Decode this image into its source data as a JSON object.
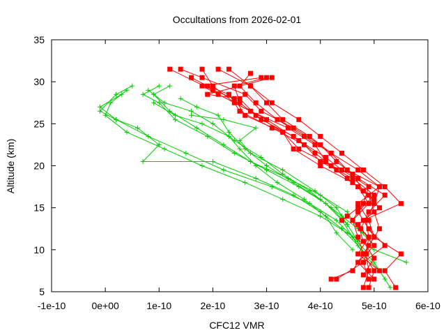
{
  "chart_data": {
    "type": "line",
    "title": "Occultations from 2026-02-01",
    "xlabel": "CFC12 VMR",
    "ylabel": "Altitude (km)",
    "xlim": [
      -1e-10,
      6e-10
    ],
    "ylim": [
      5,
      35
    ],
    "x_ticks": [
      -1e-10,
      0,
      1e-10,
      2e-10,
      3e-10,
      4e-10,
      5e-10,
      6e-10
    ],
    "x_tick_labels": [
      "-1e-10",
      "0e+00",
      "1e-10",
      "2e-10",
      "3e-10",
      "4e-10",
      "5e-10",
      "6e-10"
    ],
    "y_ticks": [
      5,
      10,
      15,
      20,
      25,
      30,
      35
    ],
    "y_tick_labels": [
      "5",
      "10",
      "15",
      "20",
      "25",
      "30",
      "35"
    ],
    "grid": false,
    "legend": "none",
    "colors": {
      "red": "#ff0000",
      "green": "#00cc00"
    },
    "series": [
      {
        "name": "red-1",
        "color": "#ff0000",
        "marker": "square",
        "points": [
          [
            4.8e-10,
            5.5
          ],
          [
            4.9e-10,
            7.5
          ],
          [
            4.85e-10,
            9.5
          ],
          [
            4.9e-10,
            11.5
          ],
          [
            4.85e-10,
            13.5
          ],
          [
            5e-10,
            15.5
          ],
          [
            5.1e-10,
            17.5
          ],
          [
            4.5e-10,
            19.5
          ],
          [
            4.2e-10,
            21.5
          ],
          [
            3.8e-10,
            23.5
          ],
          [
            3.3e-10,
            25.5
          ],
          [
            3e-10,
            27.5
          ],
          [
            2.7e-10,
            29.5
          ],
          [
            2.3e-10,
            31.5
          ]
        ]
      },
      {
        "name": "red-2",
        "color": "#ff0000",
        "marker": "square",
        "points": [
          [
            5e-10,
            6.5
          ],
          [
            4.7e-10,
            8.5
          ],
          [
            5e-10,
            10.5
          ],
          [
            4.75e-10,
            12.5
          ],
          [
            4.9e-10,
            14.5
          ],
          [
            5.2e-10,
            16.5
          ],
          [
            4.7e-10,
            18.5
          ],
          [
            4.3e-10,
            20.5
          ],
          [
            4e-10,
            22.5
          ],
          [
            3.5e-10,
            24.5
          ],
          [
            2.9e-10,
            26.5
          ],
          [
            2.6e-10,
            28.5
          ],
          [
            1.8e-10,
            30.5
          ],
          [
            1.4e-10,
            31.5
          ]
        ]
      },
      {
        "name": "red-3",
        "color": "#ff0000",
        "marker": "square",
        "points": [
          [
            4.2e-10,
            6.5
          ],
          [
            4.6e-10,
            7.5
          ],
          [
            4.8e-10,
            9.5
          ],
          [
            4.7e-10,
            11.5
          ],
          [
            4.6e-10,
            13.5
          ],
          [
            4.8e-10,
            15.5
          ],
          [
            4.9e-10,
            17.5
          ],
          [
            4.4e-10,
            19.5
          ],
          [
            4.1e-10,
            21.0
          ],
          [
            3.6e-10,
            23.0
          ],
          [
            3e-10,
            25.5
          ],
          [
            2.4e-10,
            27.5
          ],
          [
            2e-10,
            29.5
          ],
          [
            1.8e-10,
            31.5
          ]
        ]
      },
      {
        "name": "red-4",
        "color": "#ff0000",
        "marker": "square",
        "points": [
          [
            5.4e-10,
            5.5
          ],
          [
            5.2e-10,
            7.5
          ],
          [
            5.5e-10,
            9.5
          ],
          [
            5e-10,
            11.5
          ],
          [
            4.8e-10,
            13.5
          ],
          [
            5.5e-10,
            15.5
          ],
          [
            5.2e-10,
            17.5
          ],
          [
            4.8e-10,
            19.5
          ],
          [
            4.4e-10,
            21.5
          ],
          [
            4e-10,
            23.5
          ],
          [
            3.6e-10,
            25.5
          ],
          [
            3.1e-10,
            27.5
          ],
          [
            2.7e-10,
            29.5
          ],
          [
            2.1e-10,
            31.5
          ]
        ]
      },
      {
        "name": "red-5",
        "color": "#ff0000",
        "marker": "square",
        "points": [
          [
            4.3e-10,
            6.5
          ],
          [
            4.8e-10,
            8.5
          ],
          [
            5.2e-10,
            10.5
          ],
          [
            4.9e-10,
            12.5
          ],
          [
            4.7e-10,
            14.5
          ],
          [
            5e-10,
            16.5
          ],
          [
            4.6e-10,
            18.5
          ],
          [
            4e-10,
            20.5
          ],
          [
            3.7e-10,
            22.5
          ],
          [
            3.1e-10,
            24.5
          ],
          [
            2.5e-10,
            26.5
          ],
          [
            2.3e-10,
            28.5
          ],
          [
            1.9e-10,
            29.5
          ],
          [
            1.6e-10,
            30.5
          ]
        ]
      },
      {
        "name": "red-6",
        "color": "#ff0000",
        "marker": "square",
        "points": [
          [
            4.9e-10,
            5.5
          ],
          [
            5e-10,
            7.5
          ],
          [
            4.8e-10,
            9.5
          ],
          [
            5e-10,
            11.5
          ],
          [
            4.9e-10,
            13.5
          ],
          [
            4.7e-10,
            15.5
          ],
          [
            5.1e-10,
            17.5
          ],
          [
            4.7e-10,
            19.5
          ],
          [
            4.2e-10,
            21.5
          ],
          [
            3.7e-10,
            23.5
          ],
          [
            3.2e-10,
            25.5
          ],
          [
            2.8e-10,
            27.5
          ],
          [
            2.5e-10,
            29.5
          ],
          [
            2.7e-10,
            31.0
          ]
        ]
      },
      {
        "name": "red-7",
        "color": "#ff0000",
        "marker": "square",
        "points": [
          [
            4.9e-10,
            6.5
          ],
          [
            4.8e-10,
            8.5
          ],
          [
            4.9e-10,
            10.5
          ],
          [
            5.1e-10,
            12.5
          ],
          [
            5e-10,
            14.5
          ],
          [
            4.9e-10,
            16.5
          ],
          [
            4.5e-10,
            18.5
          ],
          [
            4.1e-10,
            20.5
          ],
          [
            3.9e-10,
            22.5
          ],
          [
            3.4e-10,
            24.5
          ],
          [
            2.7e-10,
            26.5
          ],
          [
            2.1e-10,
            28.5
          ],
          [
            1.8e-10,
            29.5
          ],
          [
            2.9e-10,
            30.5
          ]
        ]
      },
      {
        "name": "red-8",
        "color": "#ff0000",
        "marker": "square",
        "points": [
          [
            5.1e-10,
            7.5
          ],
          [
            4.7e-10,
            9.5
          ],
          [
            4.9e-10,
            11.5
          ],
          [
            4.6e-10,
            13.5
          ],
          [
            4.9e-10,
            15.5
          ],
          [
            4.7e-10,
            17.5
          ],
          [
            4.3e-10,
            19.5
          ],
          [
            3.9e-10,
            21.5
          ],
          [
            3.5e-10,
            23.5
          ],
          [
            2.9e-10,
            25.5
          ],
          [
            2.5e-10,
            27.5
          ],
          [
            2.4e-10,
            29.5
          ],
          [
            3e-10,
            30.5
          ]
        ]
      },
      {
        "name": "red-9",
        "color": "#ff0000",
        "marker": "square",
        "points": [
          [
            4.8e-10,
            7.0
          ],
          [
            5e-10,
            9.0
          ],
          [
            4.8e-10,
            11.0
          ],
          [
            4.7e-10,
            13.0
          ],
          [
            5.1e-10,
            15.0
          ],
          [
            4.8e-10,
            17.0
          ],
          [
            4.6e-10,
            19.0
          ],
          [
            4.2e-10,
            20.0
          ],
          [
            3.6e-10,
            22.0
          ],
          [
            3.3e-10,
            24.0
          ],
          [
            2.6e-10,
            26.0
          ],
          [
            2.4e-10,
            28.0
          ],
          [
            2e-10,
            29.0
          ],
          [
            1.2e-10,
            31.5
          ]
        ]
      },
      {
        "name": "red-10",
        "color": "#ff0000",
        "marker": "square",
        "points": [
          [
            4.4e-10,
            13.5
          ],
          [
            4.5e-10,
            14.0
          ],
          [
            4.7e-10,
            15.0
          ],
          [
            5e-10,
            16.0
          ],
          [
            4.6e-10,
            18.0
          ],
          [
            4e-10,
            20.0
          ],
          [
            3.5e-10,
            22.0
          ],
          [
            3.3e-10,
            24.0
          ],
          [
            2.8e-10,
            26.0
          ],
          [
            2.5e-10,
            28.0
          ],
          [
            1.9e-10,
            28.5
          ],
          [
            3.1e-10,
            30.5
          ]
        ]
      },
      {
        "name": "green-1",
        "color": "#00cc00",
        "marker": "plus",
        "points": [
          [
            5.3e-10,
            5.5
          ],
          [
            5.1e-10,
            7.5
          ],
          [
            4.8e-10,
            9.5
          ],
          [
            4.6e-10,
            11.5
          ],
          [
            4.3e-10,
            13.5
          ],
          [
            3.8e-10,
            15.5
          ],
          [
            3.1e-10,
            17.5
          ],
          [
            2.2e-10,
            19.5
          ],
          [
            1.5e-10,
            21.5
          ],
          [
            8e-11,
            23.5
          ],
          [
            2e-11,
            25.5
          ],
          [
            -1e-11,
            26.5
          ],
          [
            2e-11,
            28.5
          ],
          [
            5e-11,
            29.5
          ]
        ]
      },
      {
        "name": "green-2",
        "color": "#00cc00",
        "marker": "plus",
        "points": [
          [
            5.6e-10,
            8.5
          ],
          [
            5e-10,
            10.0
          ],
          [
            4.5e-10,
            12.0
          ],
          [
            4e-10,
            14.0
          ],
          [
            3.3e-10,
            16.0
          ],
          [
            2.6e-10,
            18.0
          ],
          [
            1.8e-10,
            20.0
          ],
          [
            1.1e-10,
            22.0
          ],
          [
            4e-11,
            24.0
          ],
          [
            0.0,
            26.0
          ],
          [
            1e-11,
            27.5
          ],
          [
            4e-11,
            29.0
          ]
        ]
      },
      {
        "name": "green-3",
        "color": "#00cc00",
        "marker": "plus",
        "points": [
          [
            5.2e-10,
            6.5
          ],
          [
            5e-10,
            8.5
          ],
          [
            4.7e-10,
            10.5
          ],
          [
            4.4e-10,
            12.5
          ],
          [
            4e-10,
            14.5
          ],
          [
            3.5e-10,
            16.5
          ],
          [
            2.8e-10,
            18.5
          ],
          [
            2e-10,
            20.5
          ],
          [
            7e-11,
            20.5
          ],
          [
            1e-10,
            22.5
          ],
          [
            6e-11,
            24.5
          ],
          [
            2e-11,
            25.5
          ],
          [
            -1e-11,
            27.0
          ],
          [
            3e-11,
            28.5
          ]
        ]
      },
      {
        "name": "green-4",
        "color": "#00cc00",
        "marker": "plus",
        "points": [
          [
            4.9e-10,
            9.5
          ],
          [
            4.6e-10,
            11.5
          ],
          [
            4.4e-10,
            13.5
          ],
          [
            4.1e-10,
            15.5
          ],
          [
            3.6e-10,
            17.5
          ],
          [
            3e-10,
            19.5
          ],
          [
            2.4e-10,
            21.5
          ],
          [
            1.9e-10,
            23.5
          ],
          [
            1.3e-10,
            25.5
          ],
          [
            1e-10,
            27.5
          ],
          [
            7e-11,
            28.5
          ],
          [
            1e-10,
            29.5
          ]
        ]
      },
      {
        "name": "green-5",
        "color": "#00cc00",
        "marker": "plus",
        "points": [
          [
            5e-10,
            10.5
          ],
          [
            4.7e-10,
            12.5
          ],
          [
            4.5e-10,
            14.5
          ],
          [
            4e-10,
            16.5
          ],
          [
            3.4e-10,
            18.5
          ],
          [
            2.7e-10,
            20.5
          ],
          [
            2.2e-10,
            22.5
          ],
          [
            1.7e-10,
            24.5
          ],
          [
            1.2e-10,
            26.5
          ],
          [
            9e-11,
            28.5
          ],
          [
            1.2e-10,
            29.5
          ]
        ]
      },
      {
        "name": "green-6",
        "color": "#00cc00",
        "marker": "plus",
        "points": [
          [
            4.7e-10,
            11.0
          ],
          [
            4.5e-10,
            13.0
          ],
          [
            4.2e-10,
            15.0
          ],
          [
            3.8e-10,
            17.0
          ],
          [
            3.3e-10,
            19.0
          ],
          [
            2.9e-10,
            21.0
          ],
          [
            2.4e-10,
            23.0
          ],
          [
            2e-10,
            25.0
          ],
          [
            1.6e-10,
            26.5
          ],
          [
            1.1e-10,
            27.5
          ],
          [
            8e-11,
            29.0
          ]
        ]
      },
      {
        "name": "green-7",
        "color": "#00cc00",
        "marker": "plus",
        "points": [
          [
            4.8e-10,
            12.0
          ],
          [
            4.4e-10,
            14.0
          ],
          [
            4e-10,
            16.0
          ],
          [
            3.5e-10,
            18.0
          ],
          [
            3e-10,
            20.0
          ],
          [
            2.6e-10,
            22.0
          ],
          [
            2.3e-10,
            24.0
          ],
          [
            2.1e-10,
            26.0
          ],
          [
            1.7e-10,
            27.0
          ],
          [
            1.4e-10,
            28.0
          ]
        ]
      },
      {
        "name": "green-8",
        "color": "#00cc00",
        "marker": "plus",
        "points": [
          [
            4.6e-10,
            10.0
          ],
          [
            4.3e-10,
            12.0
          ],
          [
            4.1e-10,
            14.0
          ],
          [
            3.7e-10,
            16.0
          ],
          [
            3.2e-10,
            18.0
          ],
          [
            2.8e-10,
            20.0
          ],
          [
            2.5e-10,
            22.0
          ],
          [
            2.3e-10,
            23.5
          ],
          [
            1.8e-10,
            25.0
          ],
          [
            1.3e-10,
            26.0
          ],
          [
            9e-11,
            27.5
          ]
        ]
      },
      {
        "name": "green-9",
        "color": "#00cc00",
        "marker": "plus",
        "points": [
          [
            4.5e-10,
            13.0
          ],
          [
            4.3e-10,
            15.0
          ],
          [
            3.9e-10,
            17.0
          ],
          [
            3.3e-10,
            19.5
          ],
          [
            2.7e-10,
            21.5
          ],
          [
            2.5e-10,
            23.0
          ],
          [
            2.8e-10,
            24.5
          ],
          [
            2.2e-10,
            25.5
          ],
          [
            1.6e-10,
            26.0
          ]
        ]
      }
    ]
  }
}
